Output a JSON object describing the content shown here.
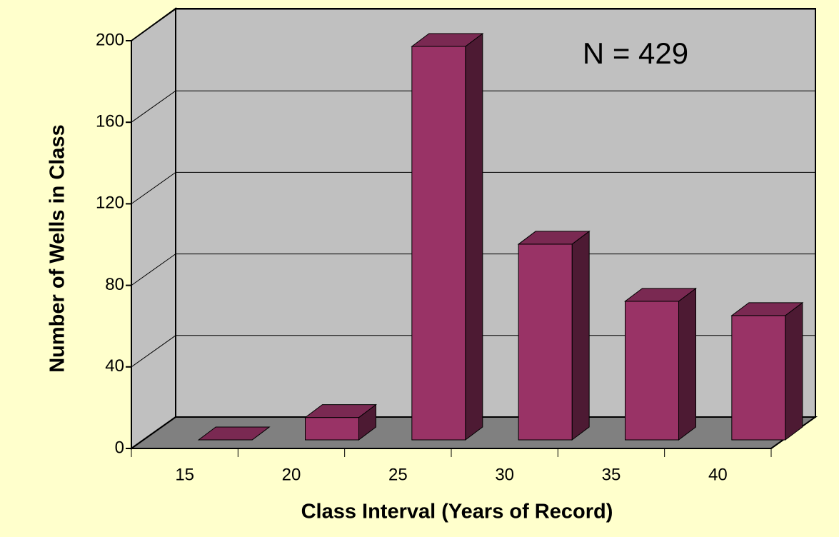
{
  "chart_data": {
    "type": "bar3d",
    "x_label": "Class Interval (Years of Record)",
    "y_label": "Number of Wells in Class",
    "annotation": "N = 429",
    "categories": [
      "15",
      "20",
      "25",
      "30",
      "35",
      "40"
    ],
    "values": [
      0,
      11,
      193,
      96,
      68,
      61
    ],
    "color": "#993366",
    "ylim": [
      0,
      200
    ],
    "yticks": [
      0,
      40,
      80,
      120,
      160,
      200
    ],
    "grid": true
  }
}
